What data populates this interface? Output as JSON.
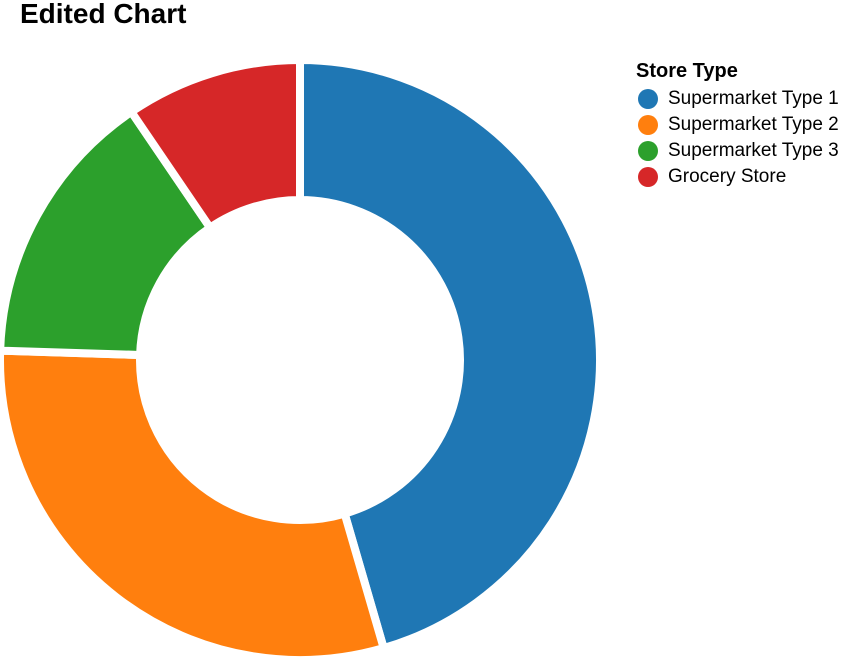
{
  "chart_data": {
    "type": "pie",
    "title": "Edited Chart",
    "legend_title": "Store Type",
    "legend_position": "top-right",
    "categories": [
      "Supermarket Type 1",
      "Supermarket Type 2",
      "Supermarket Type 3",
      "Grocery Store"
    ],
    "values": [
      45.5,
      30.0,
      15.0,
      9.5
    ],
    "colors": [
      "#1f77b4",
      "#ff7f0e",
      "#2ca02c",
      "#d62728"
    ]
  }
}
